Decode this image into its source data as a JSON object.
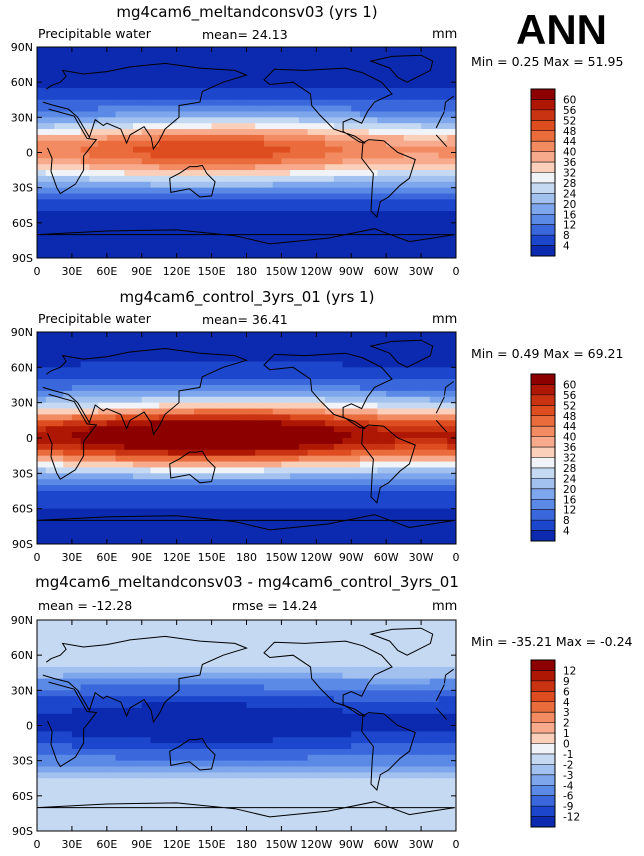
{
  "season_label": "ANN",
  "chart_data": [
    {
      "type": "heatmap",
      "title": "mg4cam6_meltandconsv03 (yrs 1)",
      "left_label": "Precipitable water",
      "stat_label": "mean=  24.13",
      "units": "mm",
      "min_max_text": "Min =   0.25 Max =  51.95",
      "min": 0.25,
      "max": 51.95,
      "mean": 24.13,
      "xlabel": "",
      "ylabel": "",
      "x_ticks": [
        "0",
        "30E",
        "60E",
        "90E",
        "120E",
        "150E",
        "180",
        "150W",
        "120W",
        "90W",
        "60W",
        "30W",
        "0"
      ],
      "y_ticks": [
        "90N",
        "60N",
        "30N",
        "0",
        "30S",
        "60S",
        "90S"
      ],
      "colorbar_labels": [
        "60",
        "56",
        "52",
        "48",
        "44",
        "40",
        "36",
        "32",
        "28",
        "24",
        "20",
        "16",
        "12",
        "8",
        "4"
      ],
      "colorbar_colors": [
        "#8c0000",
        "#ad1703",
        "#c93312",
        "#dd4d1f",
        "#ea6b3b",
        "#f28a62",
        "#f7ab8c",
        "#fbd0bb",
        "#f0f4f8",
        "#c5d9f2",
        "#a2c1ef",
        "#7ea6ec",
        "#5b89e6",
        "#3a68dc",
        "#1c46cc",
        "#0c2ab0"
      ],
      "field_model": "moisture",
      "equator_peak": 46,
      "pole_value": 2
    },
    {
      "type": "heatmap",
      "title": "mg4cam6_control_3yrs_01 (yrs 1)",
      "left_label": "Precipitable water",
      "stat_label": "mean=  36.41",
      "units": "mm",
      "min_max_text": "Min =   0.49 Max =  69.21",
      "min": 0.49,
      "max": 69.21,
      "mean": 36.41,
      "xlabel": "",
      "ylabel": "",
      "x_ticks": [
        "0",
        "30E",
        "60E",
        "90E",
        "120E",
        "150E",
        "180",
        "150W",
        "120W",
        "90W",
        "60W",
        "30W",
        "0"
      ],
      "y_ticks": [
        "90N",
        "60N",
        "30N",
        "0",
        "30S",
        "60S",
        "90S"
      ],
      "colorbar_labels": [
        "60",
        "56",
        "52",
        "48",
        "44",
        "40",
        "36",
        "32",
        "28",
        "24",
        "20",
        "16",
        "12",
        "8",
        "4"
      ],
      "colorbar_colors": [
        "#8c0000",
        "#ad1703",
        "#c93312",
        "#dd4d1f",
        "#ea6b3b",
        "#f28a62",
        "#f7ab8c",
        "#fbd0bb",
        "#f0f4f8",
        "#c5d9f2",
        "#a2c1ef",
        "#7ea6ec",
        "#5b89e6",
        "#3a68dc",
        "#1c46cc",
        "#0c2ab0"
      ],
      "field_model": "moisture",
      "equator_peak": 64,
      "pole_value": 3
    },
    {
      "type": "heatmap",
      "title": "mg4cam6_meltandconsv03 - mg4cam6_control_3yrs_01",
      "left_label": "mean = -12.28",
      "stat_label": "rmse =  14.24",
      "units": "mm",
      "min_max_text": "Min = -35.21 Max =  -0.24",
      "min": -35.21,
      "max": -0.24,
      "mean": -12.28,
      "rmse": 14.24,
      "xlabel": "",
      "ylabel": "",
      "x_ticks": [
        "0",
        "30E",
        "60E",
        "90E",
        "120E",
        "150E",
        "180",
        "150W",
        "120W",
        "90W",
        "60W",
        "30W",
        "0"
      ],
      "y_ticks": [
        "90N",
        "60N",
        "30N",
        "0",
        "30S",
        "60S",
        "90S"
      ],
      "colorbar_labels": [
        "12",
        "9",
        "6",
        "4",
        "3",
        "2",
        "1",
        "0",
        "-1",
        "-2",
        "-3",
        "-4",
        "-6",
        "-9",
        "-12"
      ],
      "colorbar_colors": [
        "#8c0000",
        "#ad1703",
        "#c93312",
        "#dd4d1f",
        "#ea6b3b",
        "#f28a62",
        "#f7ab8c",
        "#fbd0bb",
        "#f0f4f8",
        "#c5d9f2",
        "#a2c1ef",
        "#7ea6ec",
        "#5b89e6",
        "#3a68dc",
        "#1c46cc",
        "#0c2ab0"
      ],
      "field_model": "difference",
      "equator_peak": -14,
      "pole_value": -1
    }
  ]
}
